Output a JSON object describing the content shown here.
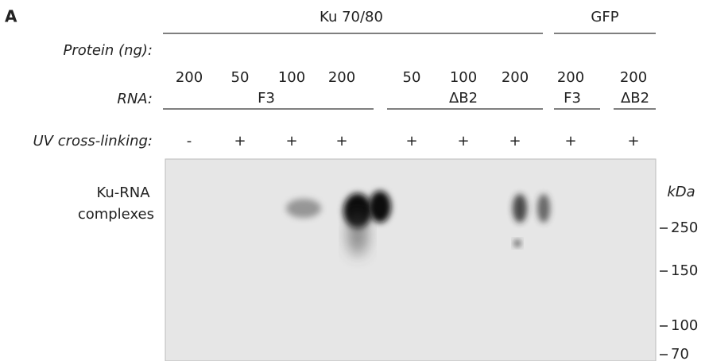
{
  "panel_label": "A",
  "groups": [
    {
      "label": "Ku 70/80"
    },
    {
      "label": "GFP"
    }
  ],
  "rows": {
    "protein": {
      "label": "Protein (ng):",
      "lanes": [
        "200",
        "50",
        "100",
        "200",
        "50",
        "100",
        "200",
        "200",
        "200"
      ]
    },
    "rna": {
      "label": "RNA:",
      "groups": [
        "F3",
        "ΔB2",
        "F3",
        "ΔB2"
      ]
    },
    "uv": {
      "label": "UV cross-linking:",
      "lanes": [
        "-",
        "+",
        "+",
        "+",
        "+",
        "+",
        "+",
        "+",
        "+"
      ]
    }
  },
  "band_label": [
    "Ku-RNA",
    "complexes"
  ],
  "markers": {
    "unit": "kDa",
    "labels": [
      "250",
      "150",
      "100",
      "70"
    ]
  }
}
